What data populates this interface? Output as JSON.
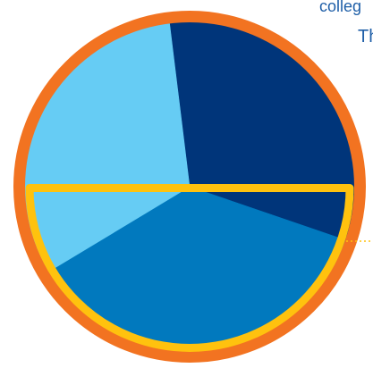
{
  "header": {
    "line1": "colleg",
    "line2": "Th"
  },
  "colors": {
    "background": "#ffffff",
    "ring": "#f27321",
    "highlight_outline": "#ffc20e",
    "callout": "#ffc20e",
    "text": "#1f5fa8"
  },
  "chart_data": {
    "type": "pie",
    "title": "",
    "start_angle_deg": -97,
    "direction": "clockwise",
    "slices": [
      {
        "value": 27.7,
        "color": "#00357a"
      },
      {
        "value": 4.5,
        "color": "#00357a"
      },
      {
        "value": 36.1,
        "color": "#0179be"
      },
      {
        "value": 9.4,
        "color": "#66ccf4"
      },
      {
        "value": 22.3,
        "color": "#66ccf4"
      }
    ],
    "highlighted_region": "lower-half"
  }
}
